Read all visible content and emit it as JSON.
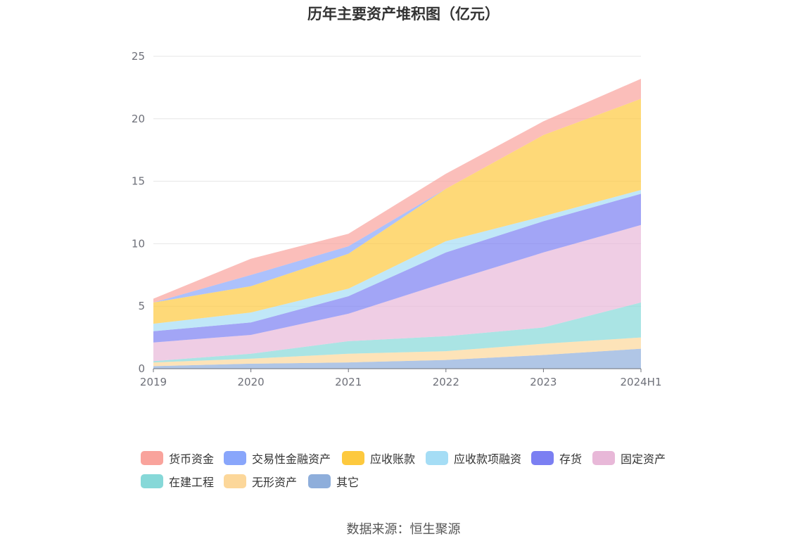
{
  "title": "历年主要资产堆积图（亿元）",
  "source": "数据来源：恒生聚源",
  "chart_data": {
    "type": "area",
    "stacked": true,
    "categories": [
      "2019",
      "2020",
      "2021",
      "2022",
      "2023",
      "2024H1"
    ],
    "ylim": [
      0,
      25
    ],
    "yticks": [
      0,
      5,
      10,
      15,
      20,
      25
    ],
    "grid": true,
    "legend_position": "bottom",
    "series": [
      {
        "name": "其它",
        "color": "#8eaedb",
        "values": [
          0.2,
          0.4,
          0.5,
          0.7,
          1.1,
          1.6
        ]
      },
      {
        "name": "无形资产",
        "color": "#fcd79a",
        "values": [
          0.3,
          0.4,
          0.7,
          0.7,
          0.9,
          0.9
        ]
      },
      {
        "name": "在建工程",
        "color": "#86d8d8",
        "values": [
          0.1,
          0.4,
          1.0,
          1.2,
          1.3,
          2.8
        ]
      },
      {
        "name": "固定资产",
        "color": "#e8b8d8",
        "values": [
          1.5,
          1.5,
          2.2,
          4.3,
          6.0,
          6.2
        ]
      },
      {
        "name": "存货",
        "color": "#7b7ff2",
        "values": [
          0.9,
          1.0,
          1.4,
          2.4,
          2.5,
          2.5
        ]
      },
      {
        "name": "应收款项融资",
        "color": "#a5ddf5",
        "values": [
          0.6,
          0.8,
          0.6,
          0.9,
          0.4,
          0.3
        ]
      },
      {
        "name": "应收账款",
        "color": "#fdc93e",
        "values": [
          1.7,
          2.1,
          2.8,
          4.2,
          6.5,
          7.3
        ]
      },
      {
        "name": "交易性金融资产",
        "color": "#89a6fb",
        "values": [
          0.0,
          0.9,
          0.6,
          0.0,
          0.0,
          0.0
        ]
      },
      {
        "name": "货币资金",
        "color": "#f9a39c",
        "values": [
          0.3,
          1.3,
          1.0,
          1.2,
          1.1,
          1.6
        ]
      }
    ],
    "legend_order": [
      "货币资金",
      "交易性金融资产",
      "应收账款",
      "应收款项融资",
      "存货",
      "固定资产",
      "在建工程",
      "无形资产",
      "其它"
    ]
  }
}
